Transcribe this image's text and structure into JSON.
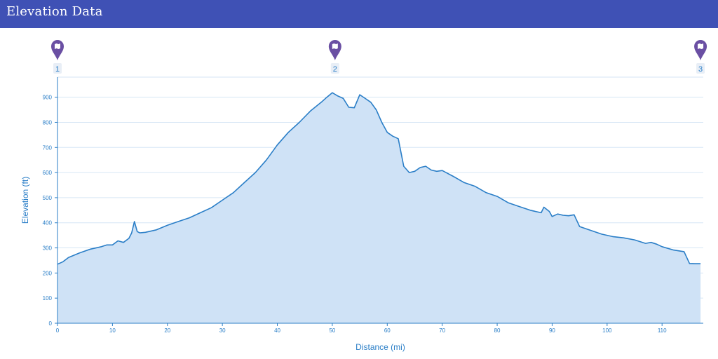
{
  "header": {
    "title": "Elevation Data"
  },
  "waypoints": [
    {
      "label": "1",
      "x": 0,
      "icon": "map-marker-icon"
    },
    {
      "label": "2",
      "x": 50.5,
      "icon": "map-marker-icon"
    },
    {
      "label": "3",
      "x": 117,
      "icon": "map-marker-icon"
    }
  ],
  "colors": {
    "header": "#3f51b5",
    "line": "#2a7ec7",
    "area": "#cfe2f6",
    "grid": "#d6e6f5",
    "marker": "#6a4fa3"
  },
  "chart_data": {
    "type": "area",
    "xlabel": "Distance (mi)",
    "ylabel": "Elevation (ft)",
    "xlim": [
      0,
      117.5
    ],
    "ylim": [
      0,
      980
    ],
    "xticks": [
      0,
      10,
      20,
      30,
      40,
      50,
      60,
      70,
      80,
      90,
      100,
      110
    ],
    "yticks": [
      0,
      100,
      200,
      300,
      400,
      500,
      600,
      700,
      800,
      900
    ],
    "grid": true,
    "x": [
      0,
      1,
      2,
      4,
      6,
      8,
      9,
      10,
      11,
      12,
      13,
      13.5,
      14,
      14.5,
      15,
      16,
      18,
      20,
      22,
      24,
      26,
      28,
      30,
      32,
      34,
      36,
      38,
      40,
      42,
      44,
      46,
      48,
      49,
      50,
      51,
      52,
      53,
      54,
      55,
      56,
      57,
      58,
      59,
      60,
      61,
      62,
      63,
      64,
      65,
      66,
      67,
      68,
      69,
      70,
      72,
      74,
      76,
      78,
      80,
      82,
      84,
      86,
      88,
      88.5,
      89.5,
      90,
      91,
      92,
      93,
      94,
      95,
      97,
      99,
      101,
      103,
      105,
      107,
      108,
      109,
      110,
      112,
      114,
      115,
      116,
      117
    ],
    "y": [
      235,
      245,
      262,
      280,
      295,
      305,
      312,
      312,
      328,
      322,
      338,
      360,
      405,
      365,
      360,
      362,
      372,
      390,
      405,
      420,
      440,
      460,
      490,
      520,
      560,
      600,
      650,
      710,
      760,
      800,
      845,
      880,
      900,
      918,
      905,
      895,
      860,
      858,
      910,
      895,
      880,
      850,
      800,
      760,
      745,
      735,
      625,
      600,
      605,
      620,
      625,
      610,
      605,
      608,
      585,
      560,
      545,
      520,
      505,
      480,
      465,
      450,
      440,
      462,
      445,
      425,
      435,
      430,
      428,
      432,
      385,
      370,
      355,
      345,
      340,
      332,
      318,
      322,
      315,
      305,
      292,
      285,
      238,
      237,
      237
    ]
  }
}
